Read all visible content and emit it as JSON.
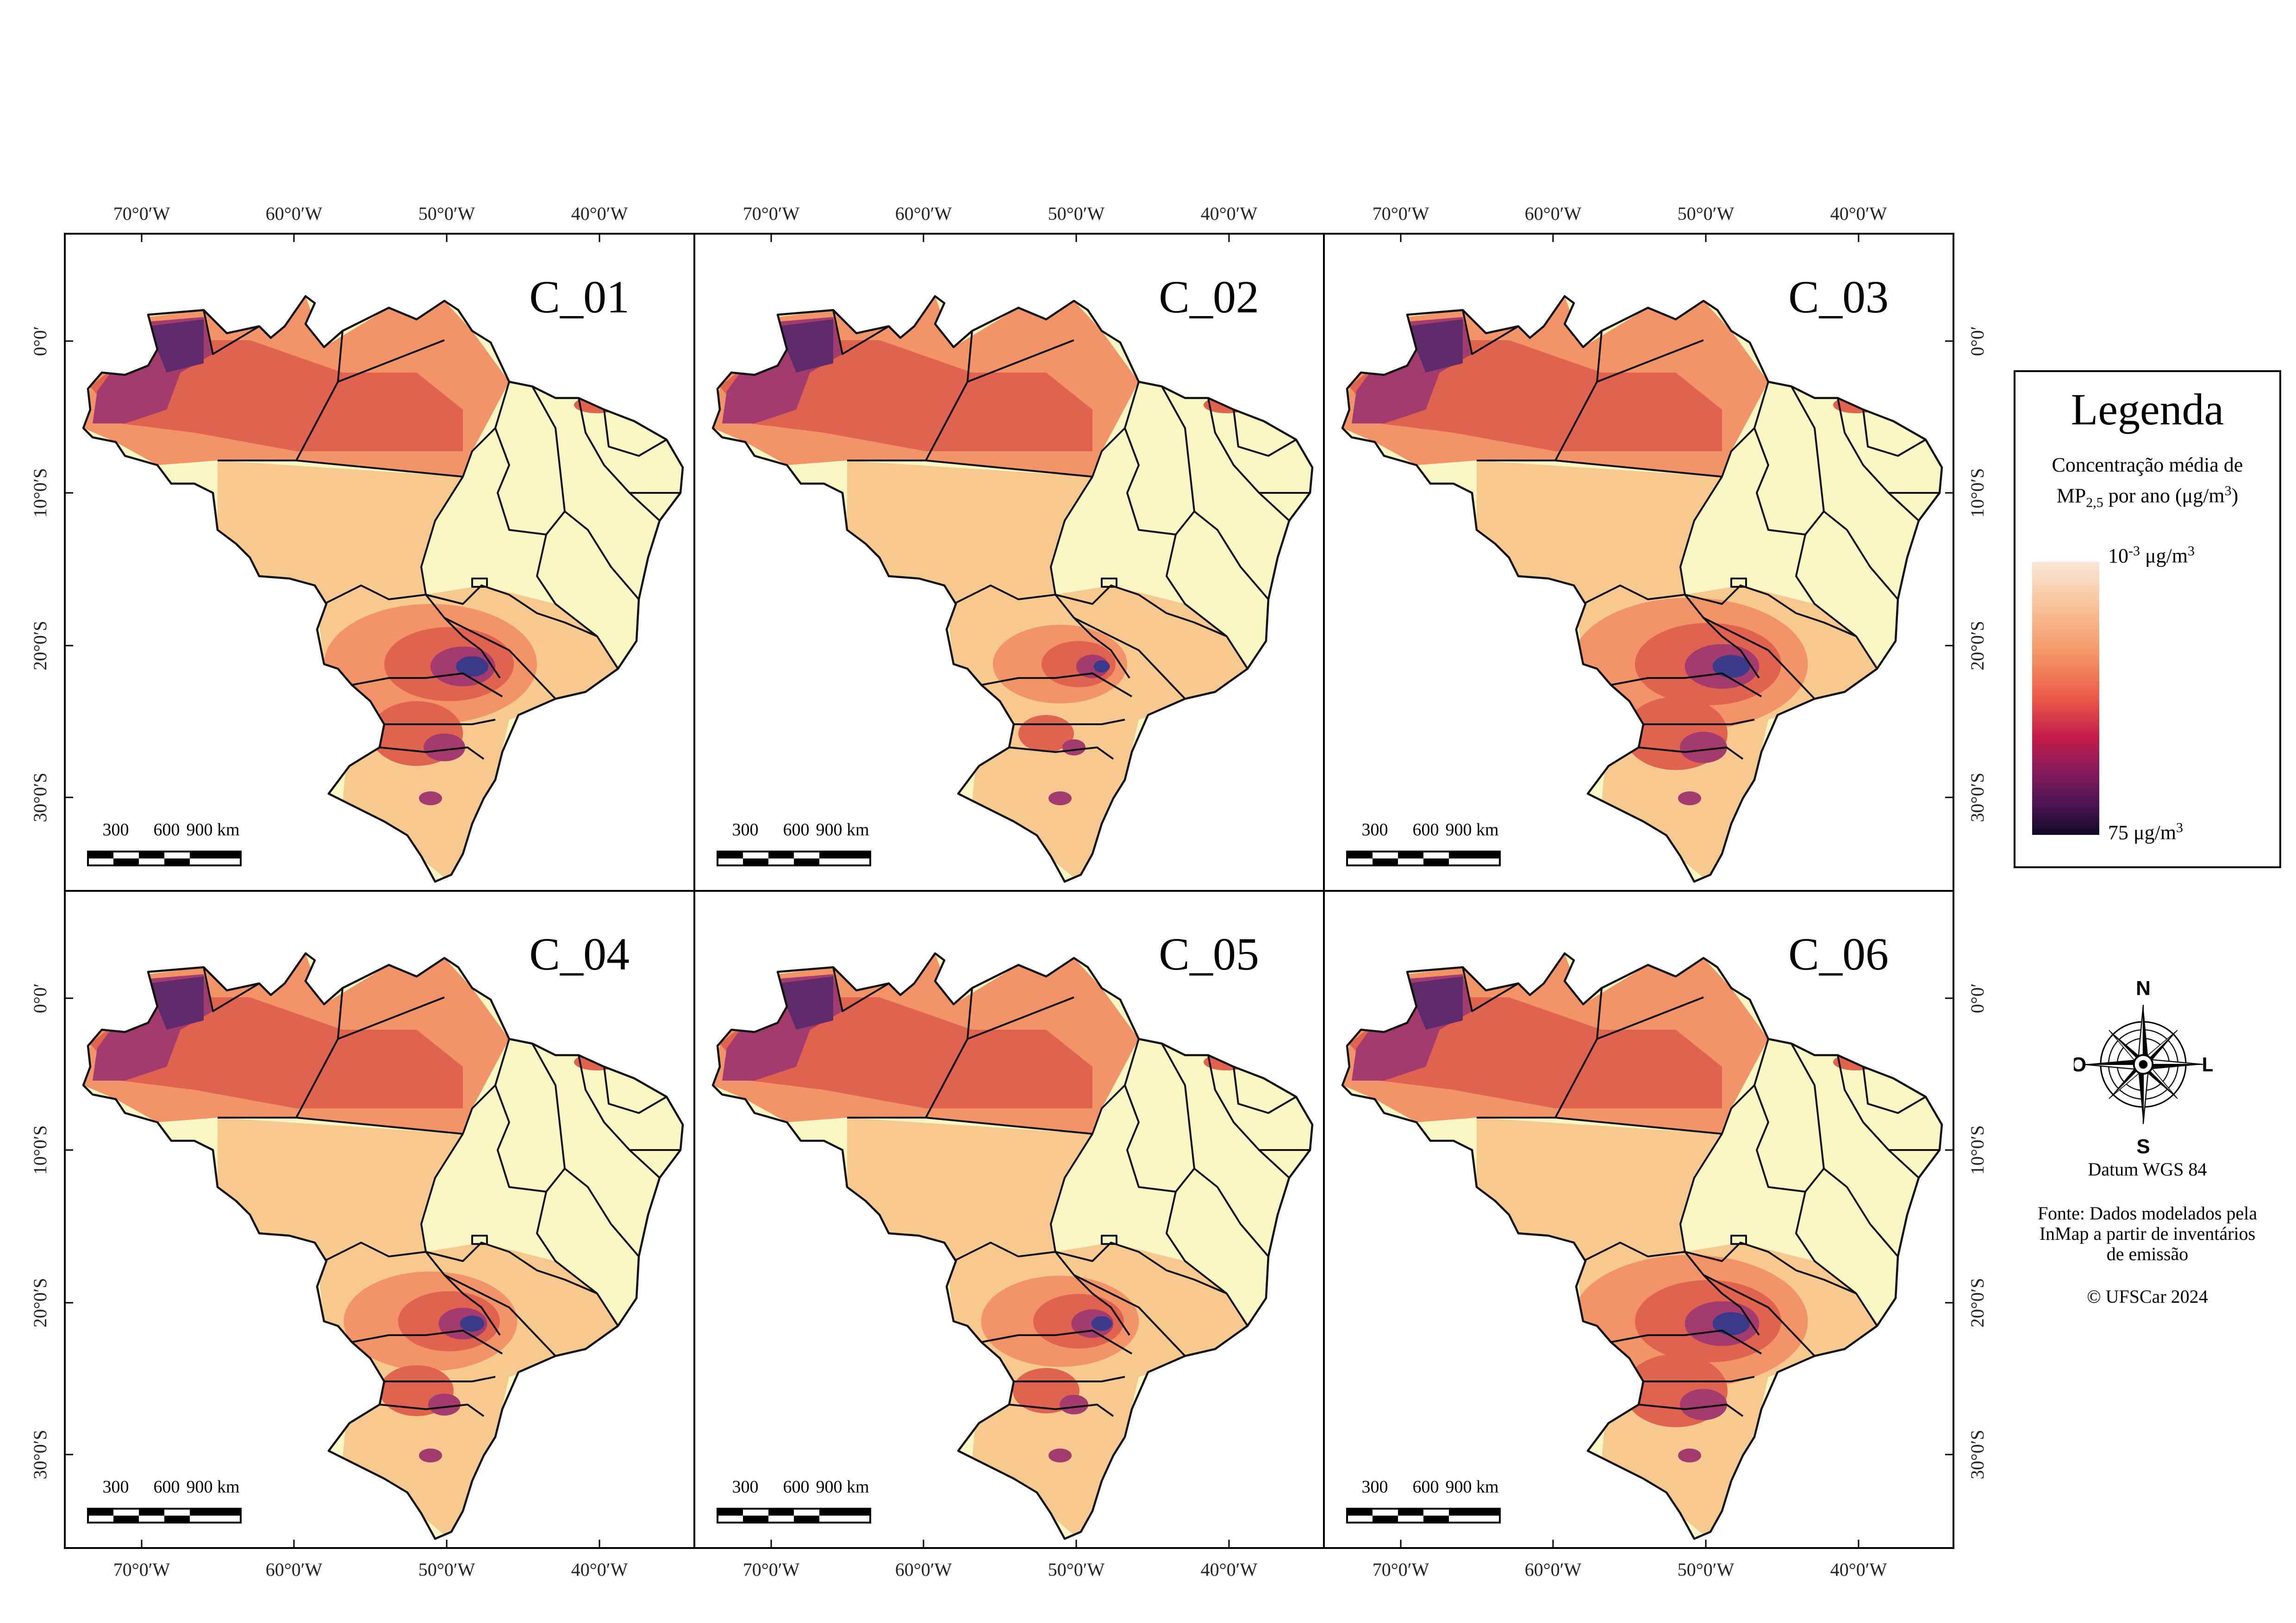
{
  "panels": [
    {
      "id": "C_01"
    },
    {
      "id": "C_02"
    },
    {
      "id": "C_03"
    },
    {
      "id": "C_04"
    },
    {
      "id": "C_05"
    },
    {
      "id": "C_06"
    }
  ],
  "axes": {
    "longitude_ticks": [
      "70°0′W",
      "60°0′W",
      "50°0′W",
      "40°0′W"
    ],
    "latitude_ticks": [
      "0°0′",
      "10°0′S",
      "20°0′S",
      "30°0′S"
    ]
  },
  "scale_bar": {
    "labels": [
      "300",
      "600",
      "900 km"
    ]
  },
  "legend": {
    "title": "Legenda",
    "subtitle_line1": "Concentração média de",
    "subtitle_line2_prefix": "MP",
    "subtitle_line2_subscript": "2,5",
    "subtitle_line2_suffix": " por ano (μg/m",
    "subtitle_line2_sup": "3",
    "subtitle_line2_end": ")",
    "min_base": "10",
    "min_exp": "-3",
    "min_unit": " μg/m",
    "min_unit_sup": "3",
    "max_value": "75 μg/m",
    "max_unit_sup": "3",
    "color_ramp": [
      "#f9e6d8",
      "#f9c8a0",
      "#f59b6c",
      "#eb5a47",
      "#c41e4a",
      "#85195a",
      "#4a1452",
      "#110b24"
    ]
  },
  "compass": {
    "north": "N",
    "south": "S",
    "west": "O",
    "east": "L"
  },
  "datum": "Datum WGS 84",
  "source_lines": [
    "Fonte: Dados modelados pela",
    "InMap a partir de inventários",
    "de emissão"
  ],
  "copyright": "© UFSCar 2024",
  "colors": {
    "low": "#fbf7c4",
    "low_mid": "#f7c98f",
    "mid": "#f29467",
    "high": "#e0634f",
    "higher": "#a33b6e",
    "highest": "#5e2a6a",
    "hotspot": "#3b3a8a"
  }
}
